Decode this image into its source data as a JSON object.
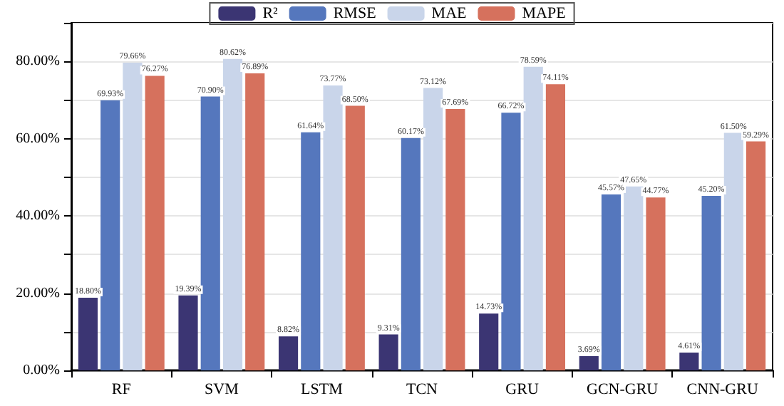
{
  "chart_data": {
    "type": "bar",
    "categories": [
      "RF",
      "SVM",
      "LSTM",
      "TCN",
      "GRU",
      "GCN-GRU",
      "CNN-GRU"
    ],
    "series": [
      {
        "name": "R²",
        "color": "#3b3573",
        "values": [
          18.8,
          19.39,
          8.82,
          9.31,
          14.73,
          3.69,
          4.61
        ],
        "value_labels": [
          "18.80%",
          "19.39%",
          "8.82%",
          "9.31%",
          "14.73%",
          "3.69%",
          "4.61%"
        ]
      },
      {
        "name": "RMSE",
        "color": "#5577bd",
        "values": [
          69.93,
          70.9,
          61.64,
          60.17,
          66.72,
          45.57,
          45.2
        ],
        "value_labels": [
          "69.93%",
          "70.90%",
          "61.64%",
          "60.17%",
          "66.72%",
          "45.57%",
          "45.20%"
        ]
      },
      {
        "name": "MAE",
        "color": "#c9d5ea",
        "values": [
          79.66,
          80.62,
          73.77,
          73.12,
          78.59,
          47.65,
          61.5
        ],
        "value_labels": [
          "79.66%",
          "80.62%",
          "73.77%",
          "73.12%",
          "78.59%",
          "47.65%",
          "61.50%"
        ]
      },
      {
        "name": "MAPE",
        "color": "#d6715d",
        "values": [
          76.27,
          76.89,
          68.5,
          67.69,
          74.11,
          44.77,
          59.29
        ],
        "value_labels": [
          "76.27%",
          "76.89%",
          "68.50%",
          "67.69%",
          "74.11%",
          "44.77%",
          "59.29%"
        ]
      }
    ],
    "ylim": [
      0,
      90
    ],
    "yticks": [
      {
        "value": 0,
        "label": "0.00%"
      },
      {
        "value": 10,
        "label": null
      },
      {
        "value": 20,
        "label": "20.00%"
      },
      {
        "value": 30,
        "label": null
      },
      {
        "value": 40,
        "label": "40.00%"
      },
      {
        "value": 50,
        "label": null
      },
      {
        "value": 60,
        "label": "60.00%"
      },
      {
        "value": 70,
        "label": null
      },
      {
        "value": 80,
        "label": "80.00%"
      },
      {
        "value": 90,
        "label": null
      }
    ],
    "grid": "y",
    "legend": "top"
  }
}
